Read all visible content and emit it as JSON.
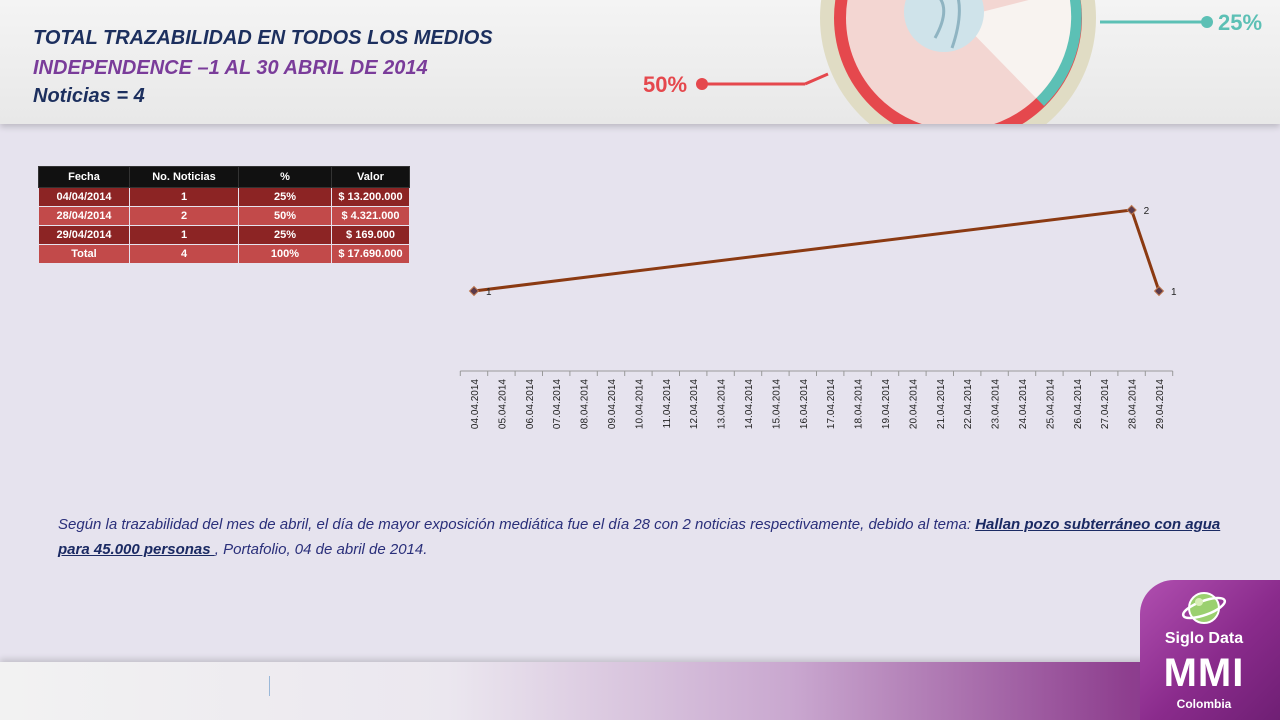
{
  "header": {
    "title": "TOTAL TRAZABILIDAD EN TODOS LOS MEDIOS",
    "subtitle": "INDEPENDENCE –1 AL 30 ABRIL DE 2014",
    "news_count": "Noticias = 4",
    "deco_left_label": "50%",
    "deco_right_label": "25%"
  },
  "table": {
    "headers": [
      "Fecha",
      "No. Noticias",
      "%",
      "Valor"
    ],
    "rows": [
      [
        "04/04/2014",
        "1",
        "25%",
        "$ 13.200.000"
      ],
      [
        "28/04/2014",
        "2",
        "50%",
        "$ 4.321.000"
      ],
      [
        "29/04/2014",
        "1",
        "25%",
        "$ 169.000"
      ]
    ],
    "total": [
      "Total",
      "4",
      "100%",
      "$ 17.690.000"
    ]
  },
  "chart_data": {
    "type": "line",
    "title": "",
    "xlabel": "",
    "ylabel": "",
    "categories": [
      "04.04.2014",
      "05.04.2014",
      "06.04.2014",
      "07.04.2014",
      "08.04.2014",
      "09.04.2014",
      "10.04.2014",
      "11.04.2014",
      "12.04.2014",
      "13.04.2014",
      "14.04.2014",
      "15.04.2014",
      "16.04.2014",
      "17.04.2014",
      "18.04.2014",
      "19.04.2014",
      "20.04.2014",
      "21.04.2014",
      "22.04.2014",
      "23.04.2014",
      "24.04.2014",
      "25.04.2014",
      "26.04.2014",
      "27.04.2014",
      "28.04.2014",
      "29.04.2014"
    ],
    "points": [
      {
        "x": "04.04.2014",
        "y": 1
      },
      {
        "x": "28.04.2014",
        "y": 2
      },
      {
        "x": "29.04.2014",
        "y": 1
      }
    ],
    "data_labels": [
      "1",
      "2",
      "1"
    ],
    "line_color": "#8b3a12",
    "marker_color": "#5b3a4a",
    "grid": false,
    "legend": "none"
  },
  "analysis": {
    "intro": "Según la trazabilidad del mes de abril, el día de mayor exposición mediática fue el día  28 con 2 noticias respectivamente, debido al tema: ",
    "link": "Hallan pozo subterráneo con agua para 45.000 personas ",
    "source": ", Portafolio, 04 de abril de 2014."
  },
  "brand": {
    "name": "Siglo Data",
    "mmi": "MMI",
    "country": "Colombia"
  },
  "colors": {
    "title": "#1c2f5e",
    "subtitle": "#7a3c9a",
    "table_header": "#111111",
    "table_dark": "#8c2424",
    "table_light": "#c24a4a",
    "brand_purple": "#8a2b8c"
  }
}
